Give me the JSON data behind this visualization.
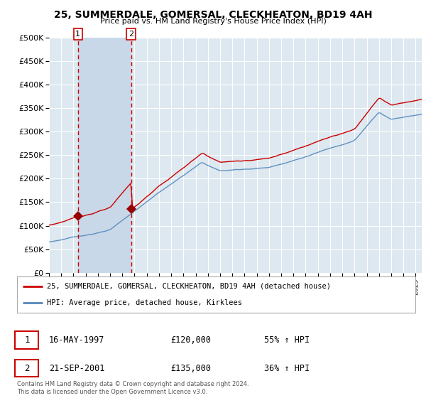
{
  "title": "25, SUMMERDALE, GOMERSAL, CLECKHEATON, BD19 4AH",
  "subtitle": "Price paid vs. HM Land Registry's House Price Index (HPI)",
  "legend_line1": "25, SUMMERDALE, GOMERSAL, CLECKHEATON, BD19 4AH (detached house)",
  "legend_line2": "HPI: Average price, detached house, Kirklees",
  "transaction1_date": "16-MAY-1997",
  "transaction1_price": "£120,000",
  "transaction1_hpi": "55% ↑ HPI",
  "transaction1_year": 1997.37,
  "transaction1_value": 120000,
  "transaction2_date": "21-SEP-2001",
  "transaction2_price": "£135,000",
  "transaction2_hpi": "36% ↑ HPI",
  "transaction2_year": 2001.72,
  "transaction2_value": 135000,
  "footnote1": "Contains HM Land Registry data © Crown copyright and database right 2024.",
  "footnote2": "This data is licensed under the Open Government Licence v3.0.",
  "red_line_color": "#cc0000",
  "blue_line_color": "#5588bb",
  "plot_bg_color": "#dde8f0",
  "highlight_bg_color": "#c8d8e8",
  "grid_color": "#ffffff",
  "marker_color": "#990000",
  "dashed_line_color": "#cc0000",
  "ylim_max": 500000,
  "xlim_start": 1995.0,
  "xlim_end": 2025.5
}
